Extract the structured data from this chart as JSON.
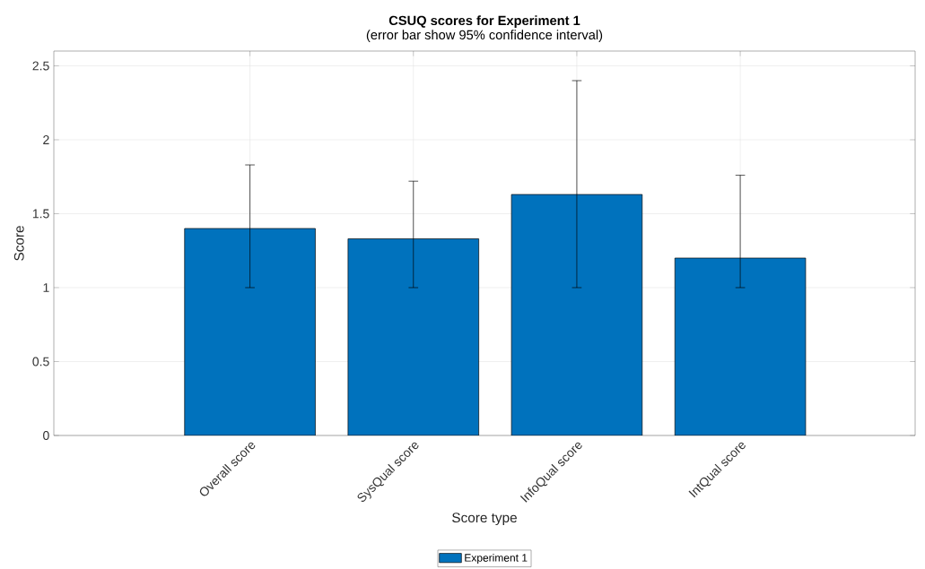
{
  "chart_data": {
    "type": "bar",
    "title": "CSUQ scores for Experiment 1",
    "subtitle": "(error bar show 95% confidence interval)",
    "xlabel": "Score type",
    "ylabel": "Score",
    "categories": [
      "Overall score",
      "SysQual score",
      "InfoQual score",
      "IntQual score"
    ],
    "series": [
      {
        "name": "Experiment 1",
        "color": "#0072bd",
        "values": [
          1.4,
          1.33,
          1.63,
          1.2
        ],
        "errors": [
          [
            1.0,
            1.83
          ],
          [
            1.0,
            1.72
          ],
          [
            1.0,
            2.4
          ],
          [
            1.0,
            1.76
          ]
        ]
      }
    ],
    "ylim": [
      0,
      2.6
    ],
    "yticks": [
      0,
      0.5,
      1,
      1.5,
      2,
      2.5
    ],
    "grid": true,
    "legend": "bottom"
  }
}
